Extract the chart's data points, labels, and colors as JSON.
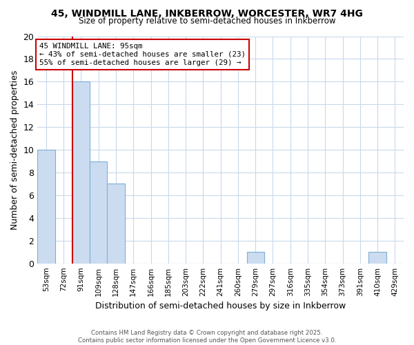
{
  "title_line1": "45, WINDMILL LANE, INKBERROW, WORCESTER, WR7 4HG",
  "title_line2": "Size of property relative to semi-detached houses in Inkberrow",
  "xlabel": "Distribution of semi-detached houses by size in Inkberrow",
  "ylabel": "Number of semi-detached properties",
  "categories": [
    "53sqm",
    "72sqm",
    "91sqm",
    "109sqm",
    "128sqm",
    "147sqm",
    "166sqm",
    "185sqm",
    "203sqm",
    "222sqm",
    "241sqm",
    "260sqm",
    "279sqm",
    "297sqm",
    "316sqm",
    "335sqm",
    "354sqm",
    "373sqm",
    "391sqm",
    "410sqm",
    "429sqm"
  ],
  "values": [
    10,
    0,
    16,
    9,
    7,
    0,
    0,
    0,
    0,
    0,
    0,
    0,
    1,
    0,
    0,
    0,
    0,
    0,
    0,
    1,
    0
  ],
  "bar_color": "#ccdcf0",
  "bar_edge_color": "#7aaed6",
  "vline_x": 2,
  "vline_color": "#cc0000",
  "annotation_title": "45 WINDMILL LANE: 95sqm",
  "annotation_line2": "← 43% of semi-detached houses are smaller (23)",
  "annotation_line3": "55% of semi-detached houses are larger (29) →",
  "annotation_box_color": "#cc0000",
  "ylim": [
    0,
    20
  ],
  "yticks": [
    0,
    2,
    4,
    6,
    8,
    10,
    12,
    14,
    16,
    18,
    20
  ],
  "footer_line1": "Contains HM Land Registry data © Crown copyright and database right 2025.",
  "footer_line2": "Contains public sector information licensed under the Open Government Licence v3.0.",
  "bg_color": "#ffffff",
  "grid_color": "#c8d8ec"
}
